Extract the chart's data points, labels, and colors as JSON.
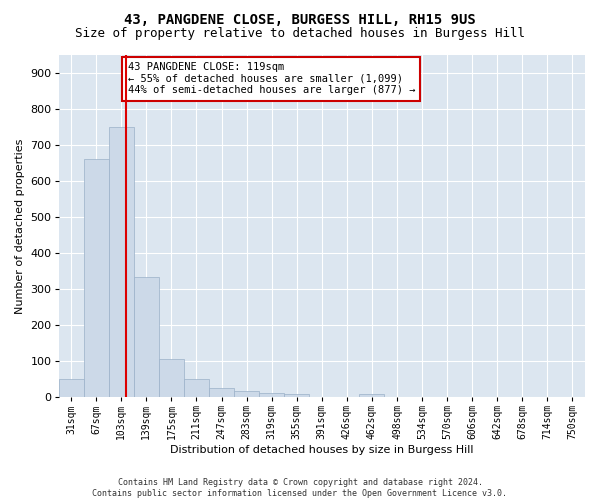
{
  "title": "43, PANGDENE CLOSE, BURGESS HILL, RH15 9US",
  "subtitle": "Size of property relative to detached houses in Burgess Hill",
  "xlabel": "Distribution of detached houses by size in Burgess Hill",
  "ylabel": "Number of detached properties",
  "footer_line1": "Contains HM Land Registry data © Crown copyright and database right 2024.",
  "footer_line2": "Contains public sector information licensed under the Open Government Licence v3.0.",
  "bin_labels": [
    "31sqm",
    "67sqm",
    "103sqm",
    "139sqm",
    "175sqm",
    "211sqm",
    "247sqm",
    "283sqm",
    "319sqm",
    "355sqm",
    "391sqm",
    "426sqm",
    "462sqm",
    "498sqm",
    "534sqm",
    "570sqm",
    "606sqm",
    "642sqm",
    "678sqm",
    "714sqm",
    "750sqm"
  ],
  "bar_values": [
    50,
    660,
    750,
    335,
    105,
    50,
    25,
    18,
    12,
    8,
    0,
    0,
    8,
    0,
    0,
    0,
    0,
    0,
    0,
    0,
    0
  ],
  "bar_color": "#ccd9e8",
  "bar_edge_color": "#9ab0c8",
  "red_line_x": 2.18,
  "red_line_color": "#dd0000",
  "ylim": [
    0,
    950
  ],
  "yticks": [
    0,
    100,
    200,
    300,
    400,
    500,
    600,
    700,
    800,
    900
  ],
  "annotation_text": "43 PANGDENE CLOSE: 119sqm\n← 55% of detached houses are smaller (1,099)\n44% of semi-detached houses are larger (877) →",
  "annotation_box_color": "#ffffff",
  "annotation_box_edge_color": "#cc0000",
  "fig_bg_color": "#ffffff",
  "plot_bg_color": "#dce6f0",
  "grid_color": "#ffffff",
  "title_fontsize": 10,
  "subtitle_fontsize": 9,
  "label_fontsize": 8,
  "tick_fontsize": 7,
  "annot_fontsize": 7.5,
  "footer_fontsize": 6
}
